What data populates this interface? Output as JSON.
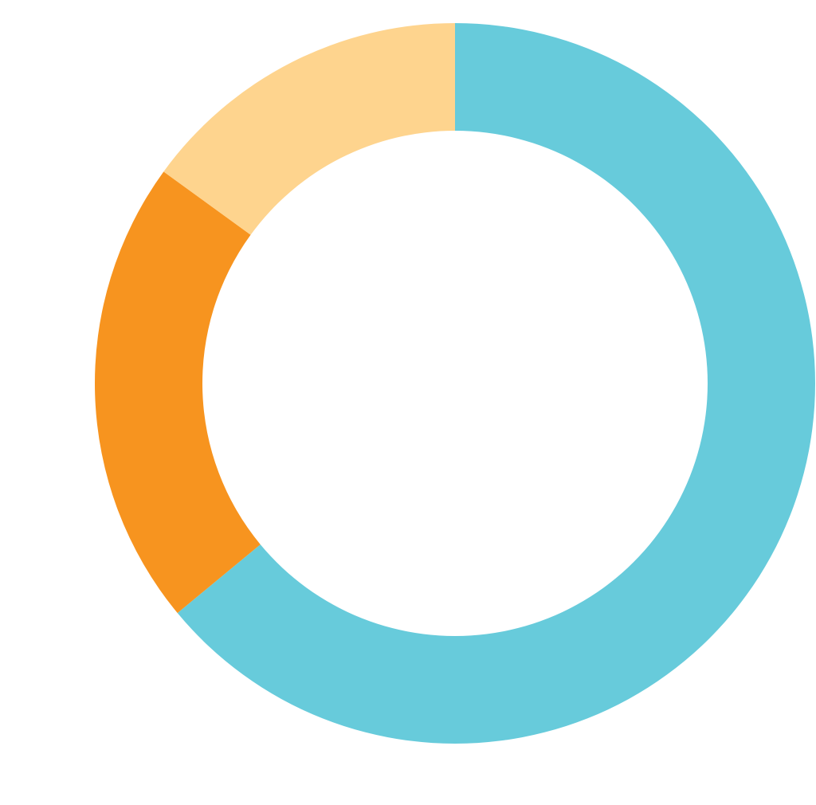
{
  "chart_data": {
    "type": "donut",
    "values": [
      64,
      21,
      15
    ],
    "colors": [
      "#67cbdb",
      "#f7941f",
      "#fed48e"
    ],
    "start_angle": 0,
    "direction": "clockwise"
  }
}
